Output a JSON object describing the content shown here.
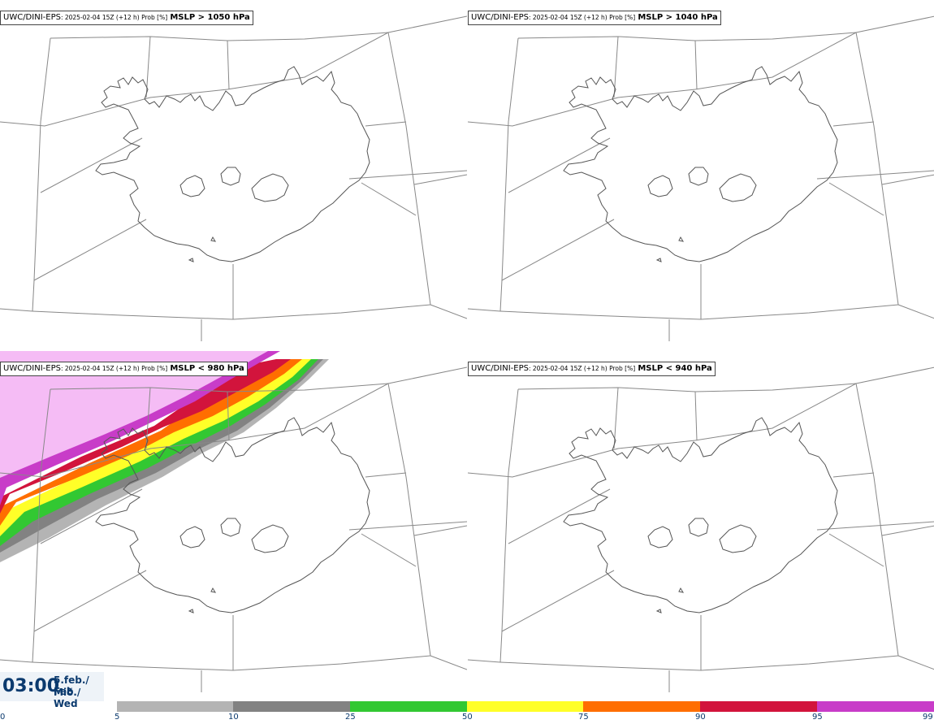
{
  "panels": [
    {
      "model": "UWC/DINI-EPS",
      "meta": ": 2025-02-04 15Z (+12 h) Prob [%]",
      "field": "MSLP > 1050 hPa"
    },
    {
      "model": "UWC/DINI-EPS",
      "meta": ": 2025-02-04 15Z (+12 h) Prob [%]",
      "field": "MSLP > 1040 hPa"
    },
    {
      "model": "UWC/DINI-EPS",
      "meta": ": 2025-02-04 15Z (+12 h) Prob [%]",
      "field": "MSLP < 980 hPa"
    },
    {
      "model": "UWC/DINI-EPS",
      "meta": ": 2025-02-04 15Z (+12 h) Prob [%]",
      "field": "MSLP < 940 hPa"
    }
  ],
  "valid_time": {
    "clock": "03:00",
    "date_line1": "5.feb./ Feb",
    "date_line2": "Mið./ Wed"
  },
  "colorbar": {
    "ticks": [
      "0",
      "5",
      "10",
      "25",
      "50",
      "75",
      "90",
      "95",
      "99"
    ],
    "colors": [
      "#b4b4b4",
      "#828282",
      "#32c832",
      "#ffff28",
      "#ff6e00",
      "#d2143c",
      "#c83cc8",
      "#f5bcf5"
    ]
  },
  "colors": {
    "outline": "#555555",
    "grid": "#888888",
    "text": "#0b3a6e"
  }
}
